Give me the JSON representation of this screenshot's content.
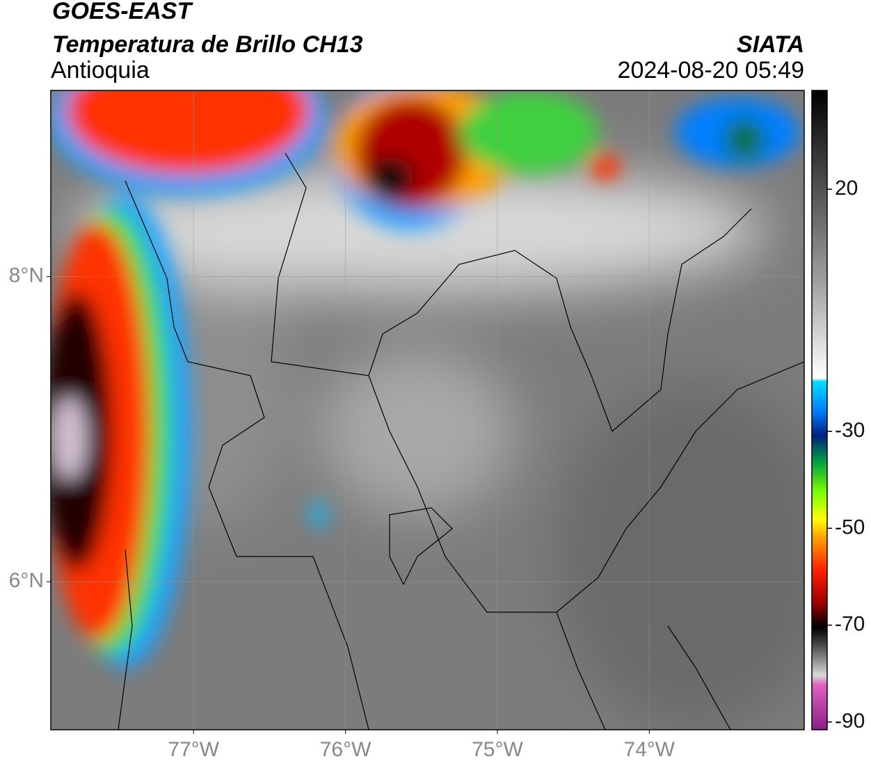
{
  "header": {
    "satellite": "GOES-EAST",
    "product": "Temperatura de Brillo CH13",
    "region": "Antioquia",
    "source": "SIATA",
    "datetime": "2024-08-20 05:49"
  },
  "map": {
    "xlim": [
      -77.94,
      -72.98
    ],
    "ylim": [
      5.03,
      9.22
    ],
    "xticks": [
      {
        "value": -77,
        "label": "77°W"
      },
      {
        "value": -76,
        "label": "76°W"
      },
      {
        "value": -75,
        "label": "75°W"
      },
      {
        "value": -74,
        "label": "74°W"
      }
    ],
    "yticks": [
      {
        "value": 8,
        "label": "8°N"
      },
      {
        "value": 6,
        "label": "6°N"
      }
    ]
  },
  "colorbar": {
    "lim": [
      -91.6,
      40.4
    ],
    "ticks": [
      20,
      -30,
      -50,
      -70,
      -90
    ]
  }
}
